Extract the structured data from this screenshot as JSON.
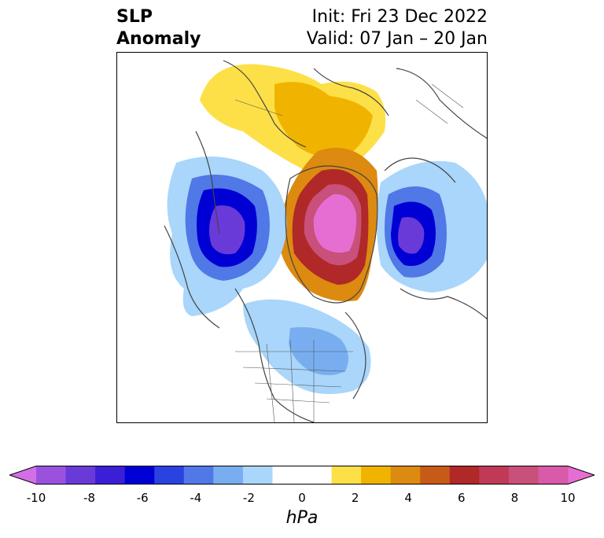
{
  "title": {
    "left_line1": "SLP",
    "left_line2": "Anomaly",
    "init": "Init: Fri 23 Dec 2022",
    "valid": "Valid: 07 Jan – 20 Jan"
  },
  "colorbar": {
    "unit": "hPa",
    "ticks": [
      "-10",
      "-8",
      "-6",
      "-4",
      "-2",
      "0",
      "2",
      "4",
      "6",
      "8",
      "10"
    ],
    "bin_colors": [
      "#9a52de",
      "#6a3ad9",
      "#3b1fd6",
      "#0000d4",
      "#2a42e0",
      "#5078e6",
      "#78aef0",
      "#a9d6fa",
      "#ffffff",
      "#ffffff",
      "#fde047",
      "#f0b400",
      "#dc8a10",
      "#c85a18",
      "#b02828",
      "#c03a58",
      "#c8507a",
      "#d85aa8"
    ],
    "min_extend_color": "#d36fe6",
    "max_extend_color": "#e66ed2"
  }
}
